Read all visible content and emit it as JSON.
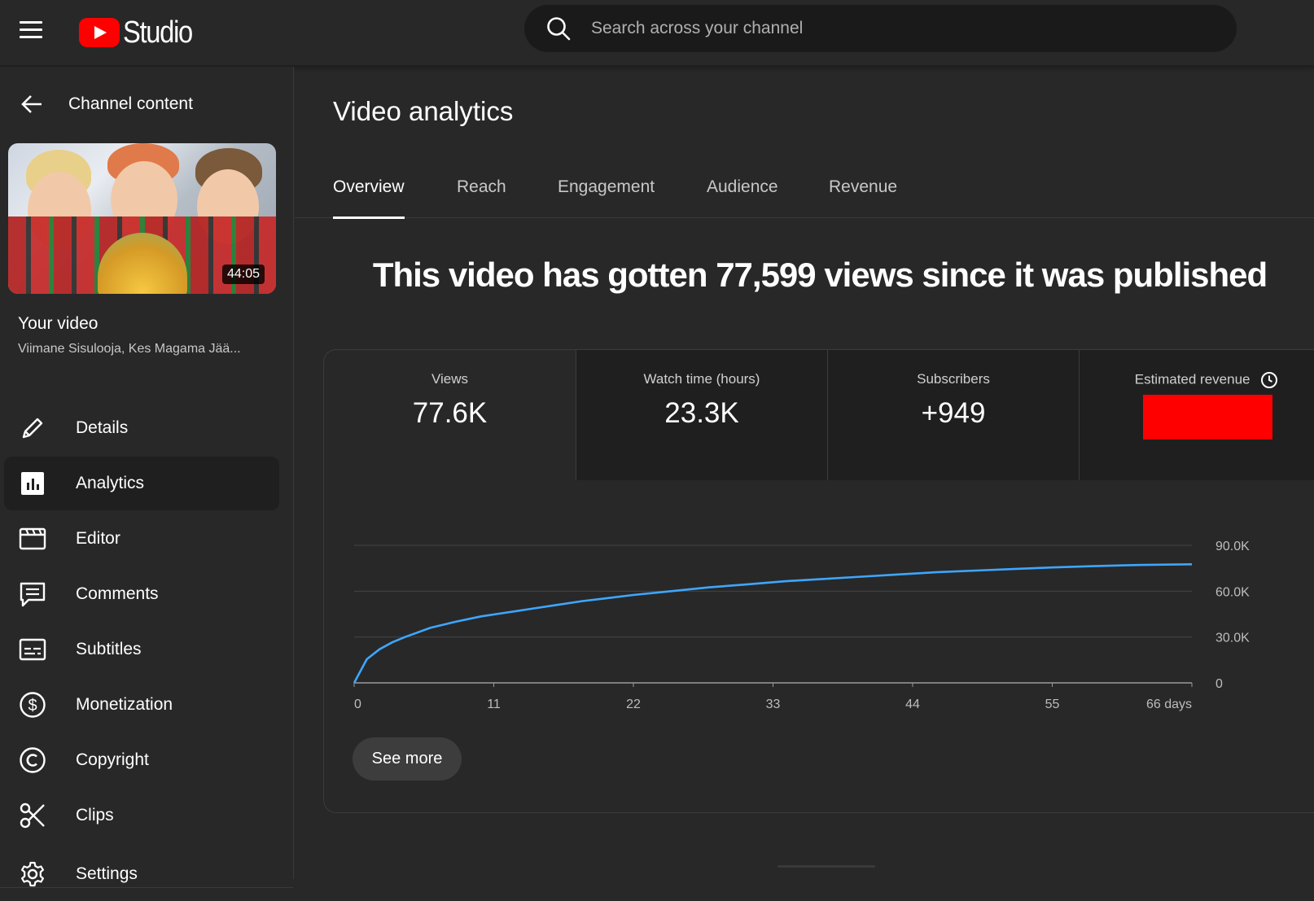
{
  "app": {
    "brand": "Studio",
    "search_placeholder": "Search across your channel"
  },
  "sidebar": {
    "back_label": "Channel content",
    "video_duration": "44:05",
    "your_video_label": "Your video",
    "video_title": "Viimane Sisulooja, Kes Magama Jää...",
    "items": [
      {
        "label": "Details",
        "icon": "pencil-icon"
      },
      {
        "label": "Analytics",
        "icon": "analytics-icon",
        "active": true
      },
      {
        "label": "Editor",
        "icon": "clapperboard-icon"
      },
      {
        "label": "Comments",
        "icon": "comment-icon"
      },
      {
        "label": "Subtitles",
        "icon": "subtitles-icon"
      },
      {
        "label": "Monetization",
        "icon": "dollar-icon"
      },
      {
        "label": "Copyright",
        "icon": "copyright-icon"
      },
      {
        "label": "Clips",
        "icon": "scissors-icon"
      },
      {
        "label": "Settings",
        "icon": "gear-icon"
      }
    ]
  },
  "main": {
    "title": "Video analytics",
    "tabs": [
      "Overview",
      "Reach",
      "Engagement",
      "Audience",
      "Revenue"
    ],
    "active_tab": "Overview",
    "headline": "This video has gotten 77,599 views since it was published",
    "metrics": [
      {
        "label": "Views",
        "value": "77.6K"
      },
      {
        "label": "Watch time (hours)",
        "value": "23.3K"
      },
      {
        "label": "Subscribers",
        "value": "+949"
      },
      {
        "label": "Estimated revenue",
        "value": ""
      }
    ],
    "see_more_label": "See more"
  },
  "colors": {
    "line": "#3ea6ff",
    "redaction": "#ff0000",
    "brand_red": "#ff0000"
  },
  "chart_data": {
    "type": "line",
    "title": "",
    "xlabel": "",
    "ylabel": "",
    "x_ticks": [
      "0",
      "11",
      "22",
      "33",
      "44",
      "55",
      "66 days"
    ],
    "y_ticks": [
      "0",
      "30.0K",
      "60.0K",
      "90.0K"
    ],
    "xlim": [
      0,
      66
    ],
    "ylim": [
      0,
      90000
    ],
    "grid": true,
    "series": [
      {
        "x": [
          0,
          1,
          2,
          3,
          4,
          6,
          8,
          10,
          12,
          14,
          16,
          18,
          20,
          22,
          25,
          28,
          31,
          34,
          37,
          40,
          43,
          46,
          49,
          52,
          55,
          58,
          61,
          64,
          66
        ],
        "y": [
          0,
          15500,
          22000,
          26500,
          30000,
          36000,
          40000,
          43500,
          46000,
          48500,
          51000,
          53500,
          55500,
          57500,
          60000,
          62500,
          64500,
          66500,
          68000,
          69500,
          71000,
          72500,
          73500,
          74500,
          75500,
          76300,
          77000,
          77400,
          77599
        ]
      }
    ]
  }
}
